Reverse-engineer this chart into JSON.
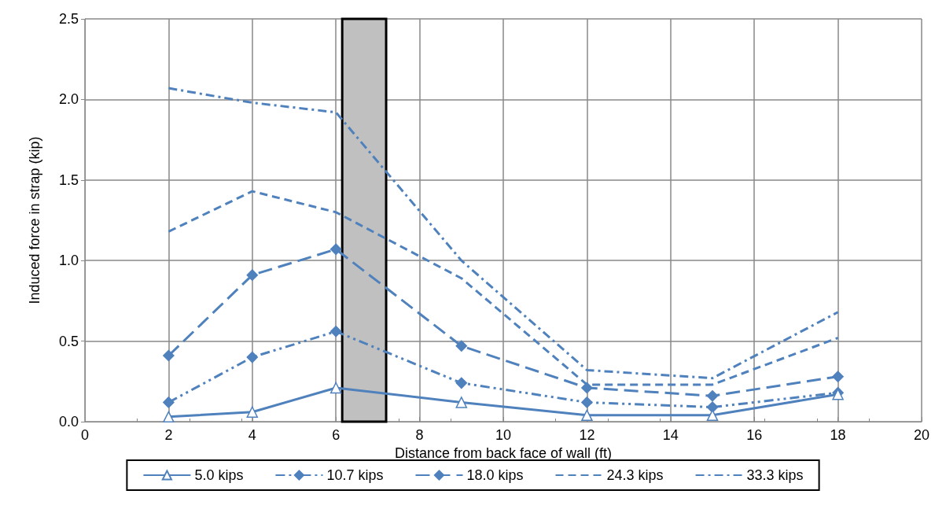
{
  "chart_data": {
    "type": "line",
    "xlabel": "Distance from back face of wall (ft)",
    "ylabel": "Induced force in strap (kip)",
    "xlim": [
      0,
      20
    ],
    "xticks": [
      0,
      2,
      4,
      6,
      8,
      10,
      12,
      14,
      16,
      18,
      20
    ],
    "ylim": [
      0,
      2.5
    ],
    "yticks": [
      {
        "value": 0,
        "label": "0.0"
      },
      {
        "value": 0.5,
        "label": "0.5"
      },
      {
        "value": 1,
        "label": "1.0"
      },
      {
        "value": 1.5,
        "label": "1.5"
      },
      {
        "value": 2,
        "label": "2.0"
      },
      {
        "value": 2.5,
        "label": "2.5"
      }
    ],
    "grid": true,
    "legend": "bottom",
    "bands": [
      {
        "axis": "x",
        "from": 6.15,
        "to": 7.2,
        "color": "#c0c0c0"
      }
    ],
    "x": [
      2,
      4,
      6,
      9,
      12,
      15,
      18
    ],
    "series": [
      {
        "name": "5.0 kips",
        "color": "#4f81bd",
        "marker": "triangle",
        "line_style": "solid",
        "values": [
          0.03,
          0.06,
          0.21,
          0.12,
          0.04,
          0.04,
          0.17
        ]
      },
      {
        "name": "10.7 kips",
        "color": "#4f81bd",
        "marker": "diamond",
        "line_style": "dashdotdot",
        "values": [
          0.12,
          0.4,
          0.56,
          0.24,
          0.12,
          0.09,
          0.18
        ]
      },
      {
        "name": "18.0 kips",
        "color": "#4f81bd",
        "marker": "diamond",
        "line_style": "longdash",
        "values": [
          0.41,
          0.91,
          1.07,
          0.47,
          0.21,
          0.16,
          0.28
        ]
      },
      {
        "name": "24.3 kips",
        "color": "#4f81bd",
        "marker": "none",
        "line_style": "dashed",
        "values": [
          1.18,
          1.43,
          1.3,
          0.89,
          0.23,
          0.23,
          0.52
        ]
      },
      {
        "name": "33.3 kips",
        "color": "#4f81bd",
        "marker": "none",
        "line_style": "dashdot",
        "values": [
          2.07,
          1.98,
          1.92,
          1.0,
          0.32,
          0.27,
          0.68
        ]
      }
    ]
  }
}
